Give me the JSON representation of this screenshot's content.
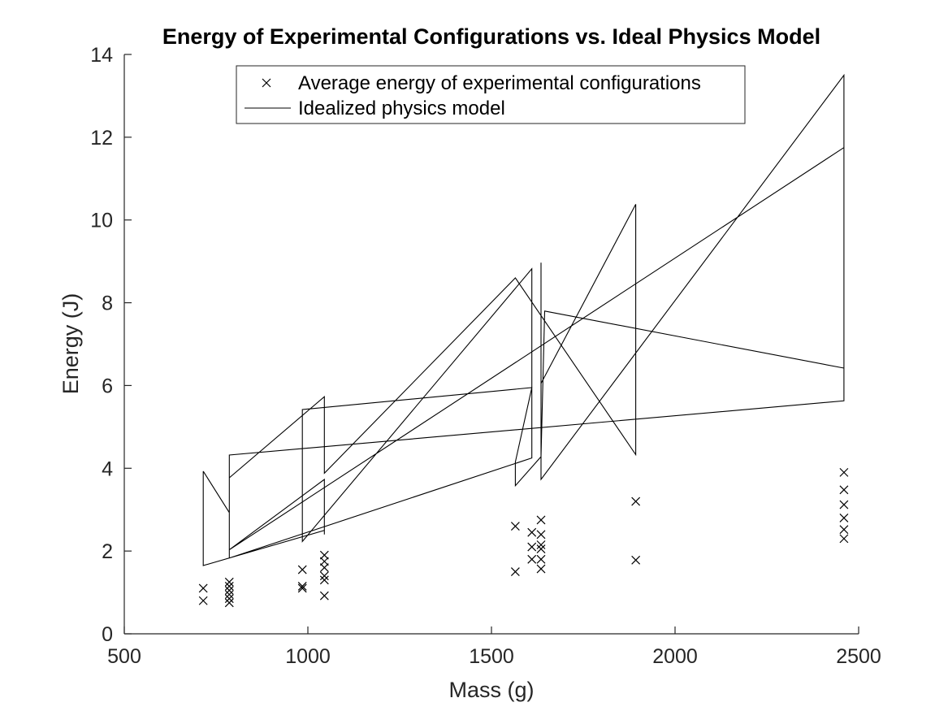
{
  "chart_data": {
    "type": "scatter",
    "title": "Energy of Experimental Configurations vs. Ideal Physics Model",
    "xlabel": "Mass (g)",
    "ylabel": "Energy (J)",
    "xlim": [
      500,
      2500
    ],
    "ylim": [
      0,
      14
    ],
    "xticks": [
      500,
      1000,
      1500,
      2000,
      2500
    ],
    "yticks": [
      0,
      2,
      4,
      6,
      8,
      10,
      12,
      14
    ],
    "grid": false,
    "legend_position": "top",
    "series": [
      {
        "name": "Average energy of experimental configurations",
        "type": "scatter",
        "marker": "x",
        "color": "#000000",
        "points": [
          [
            715,
            1.1
          ],
          [
            715,
            0.8
          ],
          [
            786,
            1.25
          ],
          [
            786,
            1.15
          ],
          [
            786,
            1.05
          ],
          [
            786,
            0.95
          ],
          [
            786,
            0.85
          ],
          [
            786,
            0.75
          ],
          [
            985,
            1.55
          ],
          [
            985,
            1.15
          ],
          [
            985,
            1.1
          ],
          [
            1045,
            1.9
          ],
          [
            1045,
            1.75
          ],
          [
            1045,
            1.6
          ],
          [
            1045,
            1.4
          ],
          [
            1045,
            1.3
          ],
          [
            1045,
            0.92
          ],
          [
            1565,
            2.6
          ],
          [
            1565,
            1.5
          ],
          [
            1610,
            2.45
          ],
          [
            1610,
            2.1
          ],
          [
            1610,
            1.8
          ],
          [
            1635,
            2.75
          ],
          [
            1635,
            2.4
          ],
          [
            1635,
            2.15
          ],
          [
            1635,
            2.05
          ],
          [
            1635,
            1.8
          ],
          [
            1635,
            1.57
          ],
          [
            1893,
            3.2
          ],
          [
            1893,
            1.78
          ],
          [
            2460,
            3.9
          ],
          [
            2460,
            3.48
          ],
          [
            2460,
            3.12
          ],
          [
            2460,
            2.8
          ],
          [
            2460,
            2.52
          ],
          [
            2460,
            2.3
          ]
        ]
      },
      {
        "name": "Idealized physics model",
        "type": "line",
        "color": "#000000",
        "points": [
          [
            715,
            3.93
          ],
          [
            786,
            2.93
          ],
          [
            786,
            3.77
          ],
          [
            1045,
            5.73
          ],
          [
            1045,
            3.88
          ],
          [
            1565,
            8.6
          ],
          [
            1893,
            4.33
          ],
          [
            1893,
            10.38
          ],
          [
            1635,
            6.05
          ],
          [
            1635,
            8.97
          ],
          [
            1635,
            3.73
          ],
          [
            2460,
            13.5
          ],
          [
            2460,
            5.63
          ],
          [
            786,
            4.32
          ],
          [
            786,
            1.83
          ],
          [
            1610,
            4.25
          ],
          [
            1610,
            8.82
          ],
          [
            985,
            2.23
          ],
          [
            985,
            5.42
          ],
          [
            1610,
            5.95
          ],
          [
            1565,
            4.15
          ],
          [
            1565,
            3.58
          ],
          [
            1635,
            4.28
          ],
          [
            1645,
            7.8
          ],
          [
            2460,
            6.42
          ],
          [
            2460,
            11.75
          ],
          [
            786,
            2.03
          ],
          [
            1045,
            3.73
          ],
          [
            1045,
            2.4
          ],
          [
            1045,
            2.5
          ],
          [
            715,
            1.65
          ],
          [
            715,
            3.93
          ]
        ]
      }
    ]
  }
}
